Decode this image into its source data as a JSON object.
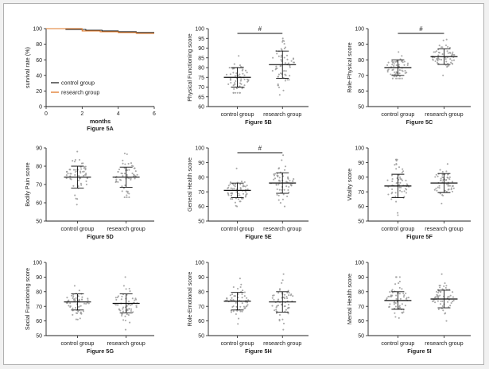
{
  "chart_data": [
    {
      "id": "5A",
      "type": "line",
      "caption_xlabel": "months",
      "caption": "Figure 5A",
      "ylabel": "survival rate (%)",
      "ylim": [
        0,
        100
      ],
      "yticks": [
        0,
        20,
        40,
        60,
        80,
        100
      ],
      "xlim": [
        0,
        6
      ],
      "xticks": [
        0,
        2,
        4,
        6
      ],
      "series": [
        {
          "name": "control group",
          "color": "#222222",
          "x": [
            0,
            1.1,
            1.1,
            2.2,
            2.2,
            3.1,
            3.1,
            4.0,
            4.0,
            5.0,
            5.0,
            6.0
          ],
          "y": [
            100,
            100,
            99,
            99,
            98,
            98,
            97,
            97,
            96,
            96,
            95,
            95
          ]
        },
        {
          "name": "research group",
          "color": "#e07a2a",
          "x": [
            0,
            2.0,
            2.0,
            3.0,
            3.0,
            4.0,
            4.0,
            5.0,
            5.0,
            6.0
          ],
          "y": [
            100,
            100,
            97,
            97,
            96,
            96,
            95,
            95,
            94,
            94
          ]
        }
      ]
    },
    {
      "id": "5B",
      "type": "scatter",
      "ylabel": "Physical Functioning score",
      "caption": "Figure 5B",
      "ylim": [
        60,
        100
      ],
      "yticks": [
        60,
        65,
        70,
        75,
        80,
        85,
        90,
        95,
        100
      ],
      "categories": [
        "control group",
        "research group"
      ],
      "mean": [
        75,
        81.5
      ],
      "sd": [
        5,
        7
      ],
      "range": [
        [
          67,
          86
        ],
        [
          66,
          95
        ]
      ],
      "significance": "#"
    },
    {
      "id": "5C",
      "type": "scatter",
      "ylabel": "Role-Physical score",
      "caption": "Figure 5C",
      "ylim": [
        50,
        100
      ],
      "yticks": [
        50,
        60,
        70,
        80,
        90,
        100
      ],
      "categories": [
        "control group",
        "research group"
      ],
      "mean": [
        75,
        82
      ],
      "sd": [
        5,
        5
      ],
      "range": [
        [
          68,
          85
        ],
        [
          70,
          93
        ]
      ],
      "significance": "#"
    },
    {
      "id": "5D",
      "type": "scatter",
      "ylabel": "Bodily Pain score",
      "caption": "Figure 5D",
      "ylim": [
        50,
        90
      ],
      "yticks": [
        50,
        60,
        70,
        80,
        90
      ],
      "categories": [
        "control group",
        "research group"
      ],
      "mean": [
        74,
        74
      ],
      "sd": [
        6,
        5.5
      ],
      "range": [
        [
          59,
          88
        ],
        [
          63,
          87
        ]
      ],
      "significance": ""
    },
    {
      "id": "5E",
      "type": "scatter",
      "ylabel": "General Health score",
      "caption": "Figure 5E",
      "ylim": [
        50,
        100
      ],
      "yticks": [
        50,
        60,
        70,
        80,
        90,
        100
      ],
      "categories": [
        "control group",
        "research group"
      ],
      "mean": [
        71,
        76
      ],
      "sd": [
        5,
        7
      ],
      "range": [
        [
          60,
          86
        ],
        [
          60,
          95
        ]
      ],
      "significance": "#"
    },
    {
      "id": "5F",
      "type": "scatter",
      "ylabel": "Vitality score",
      "caption": "Figure 5F",
      "ylim": [
        50,
        100
      ],
      "yticks": [
        50,
        60,
        70,
        80,
        90,
        100
      ],
      "categories": [
        "control group",
        "research group"
      ],
      "mean": [
        74,
        76
      ],
      "sd": [
        8,
        6.5
      ],
      "range": [
        [
          54,
          92
        ],
        [
          62,
          89
        ]
      ],
      "significance": ""
    },
    {
      "id": "5G",
      "type": "scatter",
      "ylabel": "Social Functioning score",
      "caption": "Figure 5G",
      "ylim": [
        50,
        100
      ],
      "yticks": [
        50,
        60,
        70,
        80,
        90,
        100
      ],
      "categories": [
        "control group",
        "research group"
      ],
      "mean": [
        73,
        72
      ],
      "sd": [
        5.5,
        6.5
      ],
      "range": [
        [
          61,
          84
        ],
        [
          54,
          90
        ]
      ],
      "significance": ""
    },
    {
      "id": "5H",
      "type": "scatter",
      "ylabel": "Role-Emotional score",
      "caption": "Figure 5H",
      "ylim": [
        50,
        100
      ],
      "yticks": [
        50,
        60,
        70,
        80,
        90,
        100
      ],
      "categories": [
        "control group",
        "research group"
      ],
      "mean": [
        73.5,
        73
      ],
      "sd": [
        6,
        7
      ],
      "range": [
        [
          58,
          89
        ],
        [
          54,
          92
        ]
      ],
      "significance": ""
    },
    {
      "id": "5I",
      "type": "scatter",
      "ylabel": "Mental Health score",
      "caption": "Figure 5I",
      "ylim": [
        50,
        100
      ],
      "yticks": [
        50,
        60,
        70,
        80,
        90,
        100
      ],
      "categories": [
        "control group",
        "research group"
      ],
      "mean": [
        74,
        75
      ],
      "sd": [
        6,
        6
      ],
      "range": [
        [
          62,
          90
        ],
        [
          60,
          92
        ]
      ],
      "significance": ""
    }
  ]
}
